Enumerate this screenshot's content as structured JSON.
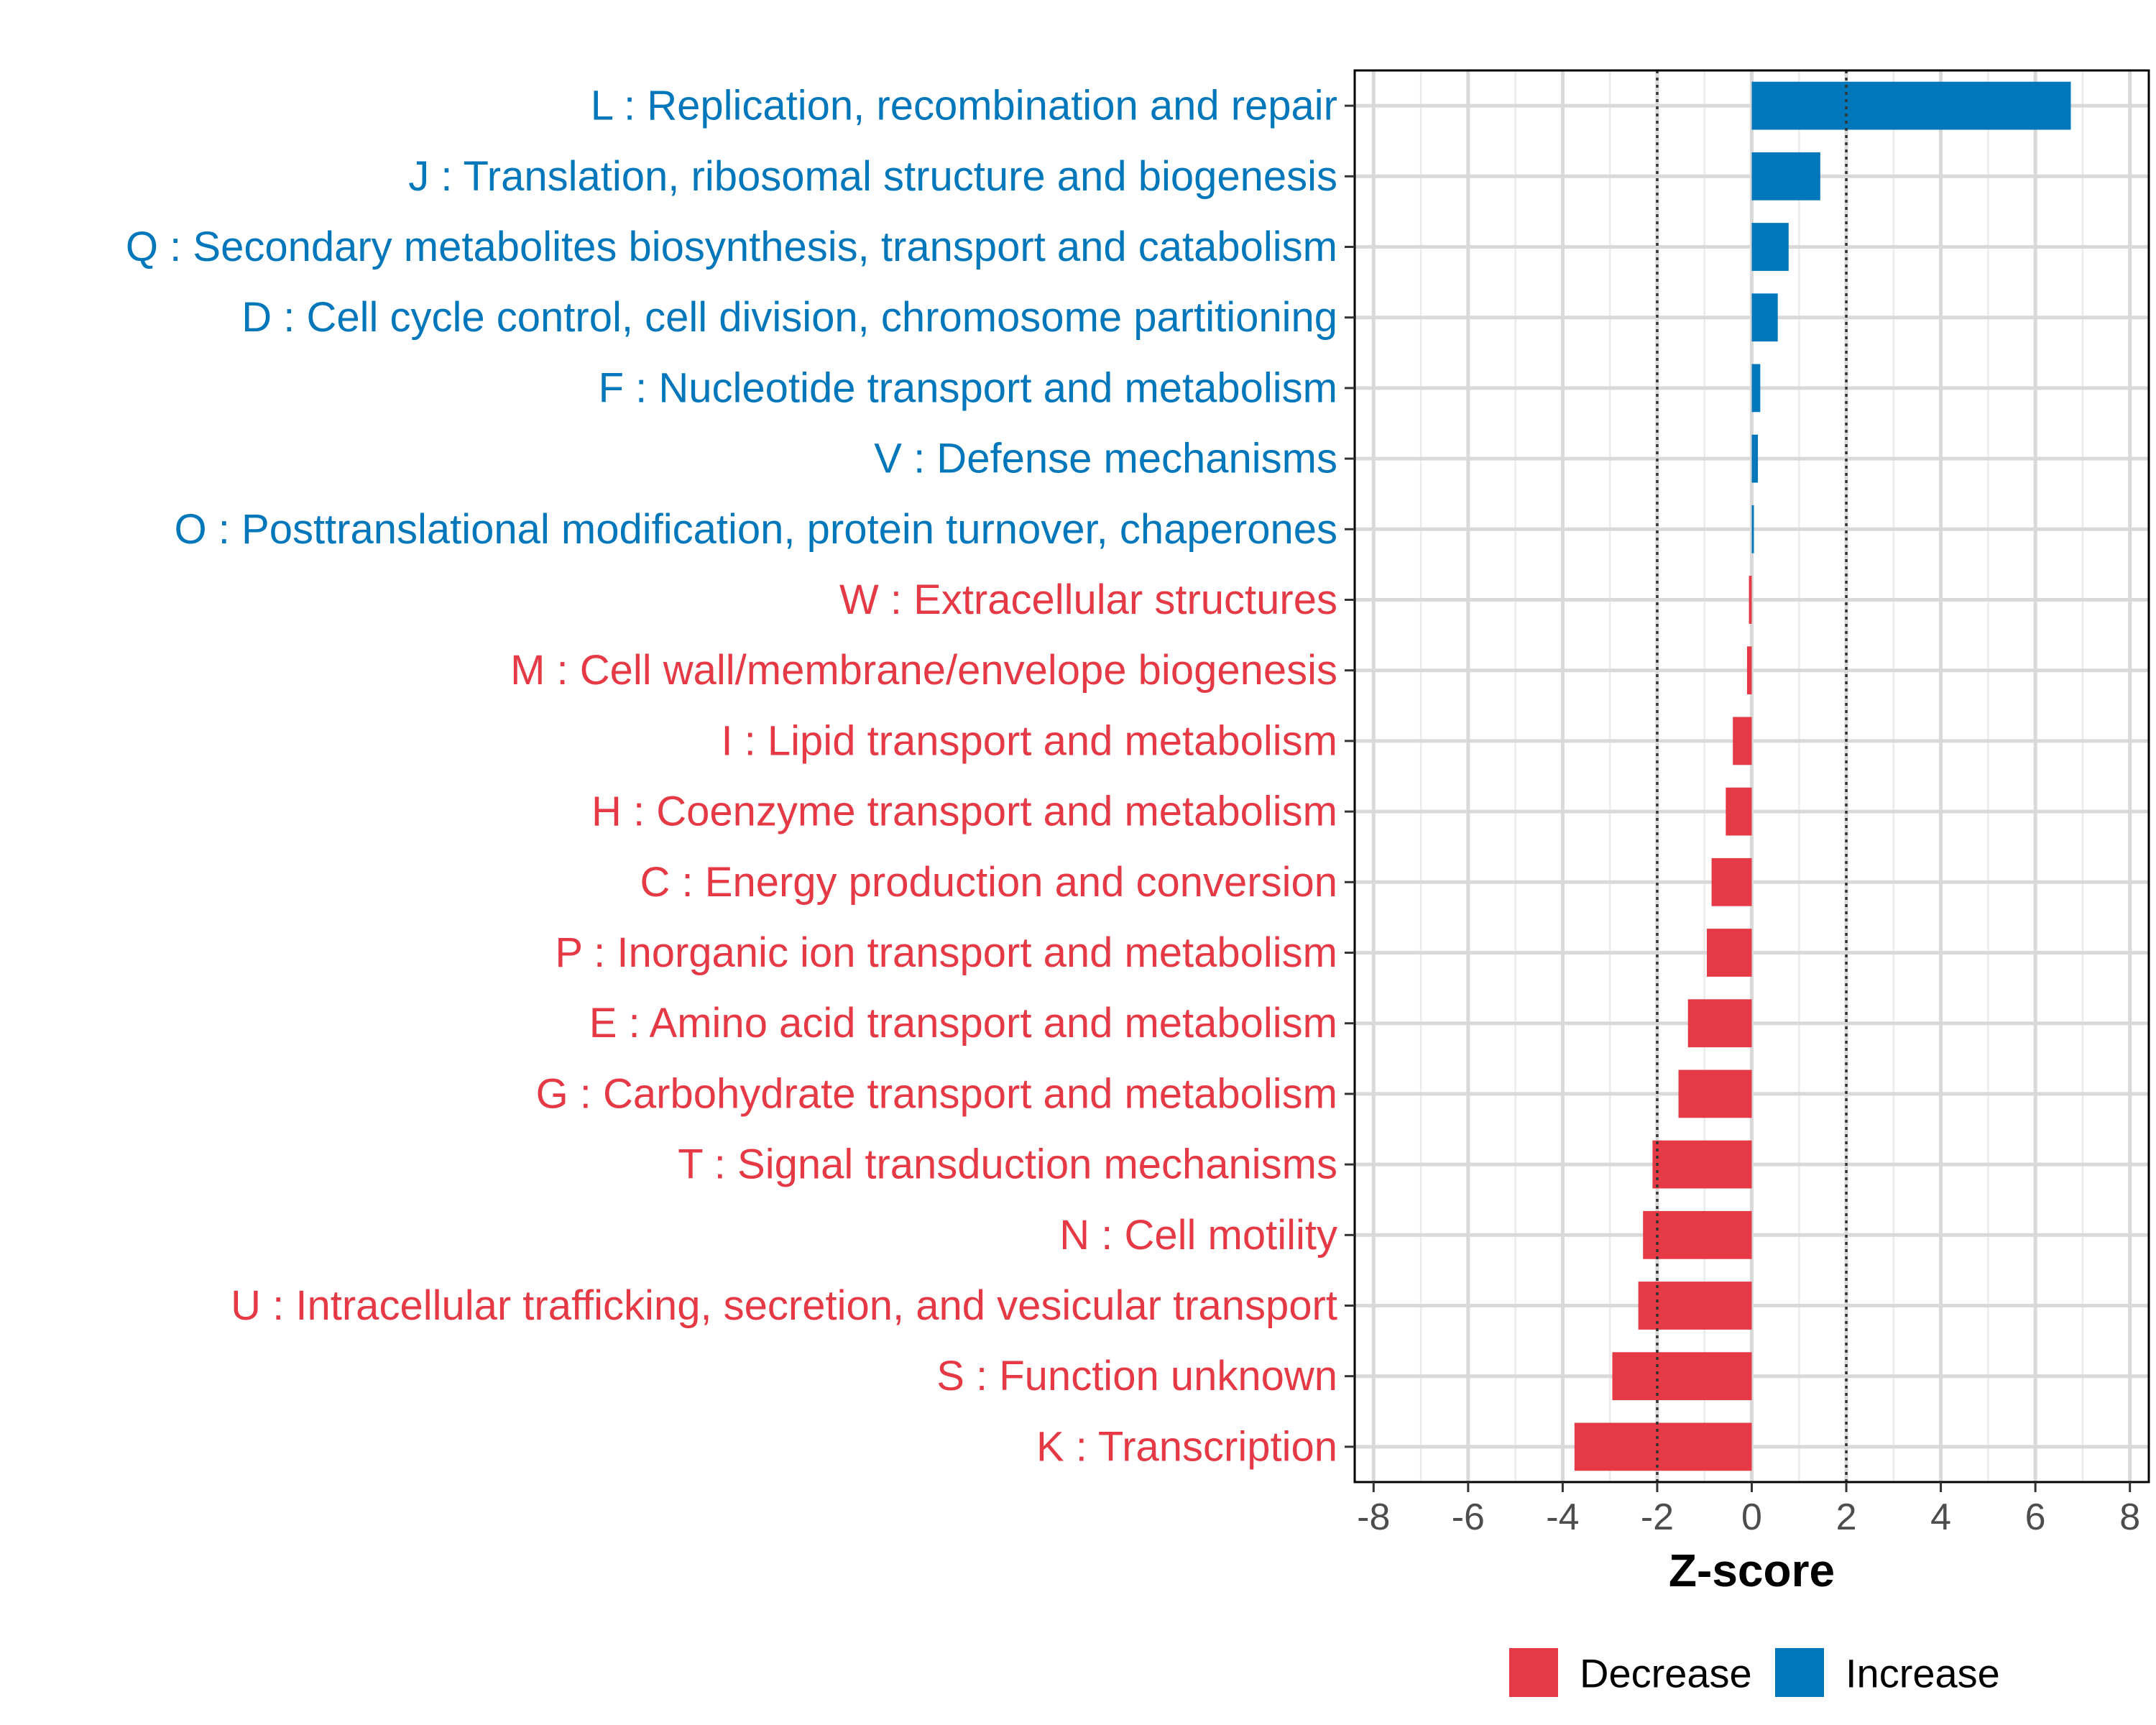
{
  "chart_data": {
    "type": "bar",
    "orientation": "horizontal",
    "title": "",
    "xlabel": "Z-score",
    "ylabel": "",
    "xlim": [
      -8.4,
      8.4
    ],
    "xticks": [
      -8,
      -6,
      -4,
      -2,
      0,
      2,
      4,
      6,
      8
    ],
    "reference_lines": [
      -2,
      2
    ],
    "grid": true,
    "legend_position": "bottom",
    "colors": {
      "Decrease": "#e63946",
      "Increase": "#0077bb"
    },
    "legend": [
      {
        "key": "Decrease",
        "label": "Decrease"
      },
      {
        "key": "Increase",
        "label": "Increase"
      }
    ],
    "categories": [
      "L : Replication, recombination and repair",
      "J : Translation, ribosomal structure and biogenesis",
      "Q : Secondary metabolites biosynthesis, transport and catabolism",
      "D : Cell cycle control, cell division, chromosome partitioning",
      "F : Nucleotide transport and metabolism",
      "V : Defense mechanisms",
      "O : Posttranslational modification, protein turnover, chaperones",
      "W : Extracellular structures",
      "M : Cell wall/membrane/envelope biogenesis",
      "I : Lipid transport and metabolism",
      "H : Coenzyme transport and metabolism",
      "C : Energy production and conversion",
      "P : Inorganic ion transport and metabolism",
      "E : Amino acid transport and metabolism",
      "G : Carbohydrate transport and metabolism",
      "T : Signal transduction mechanisms",
      "N : Cell motility",
      "U : Intracellular trafficking, secretion, and vesicular transport",
      "S : Function unknown",
      "K : Transcription"
    ],
    "values": [
      6.75,
      1.45,
      0.78,
      0.55,
      0.18,
      0.13,
      0.04,
      -0.06,
      -0.1,
      -0.4,
      -0.55,
      -0.85,
      -0.95,
      -1.35,
      -1.55,
      -2.1,
      -2.3,
      -2.4,
      -2.95,
      -3.75
    ],
    "groups": [
      "Increase",
      "Increase",
      "Increase",
      "Increase",
      "Increase",
      "Increase",
      "Increase",
      "Decrease",
      "Decrease",
      "Decrease",
      "Decrease",
      "Decrease",
      "Decrease",
      "Decrease",
      "Decrease",
      "Decrease",
      "Decrease",
      "Decrease",
      "Decrease",
      "Decrease"
    ]
  }
}
